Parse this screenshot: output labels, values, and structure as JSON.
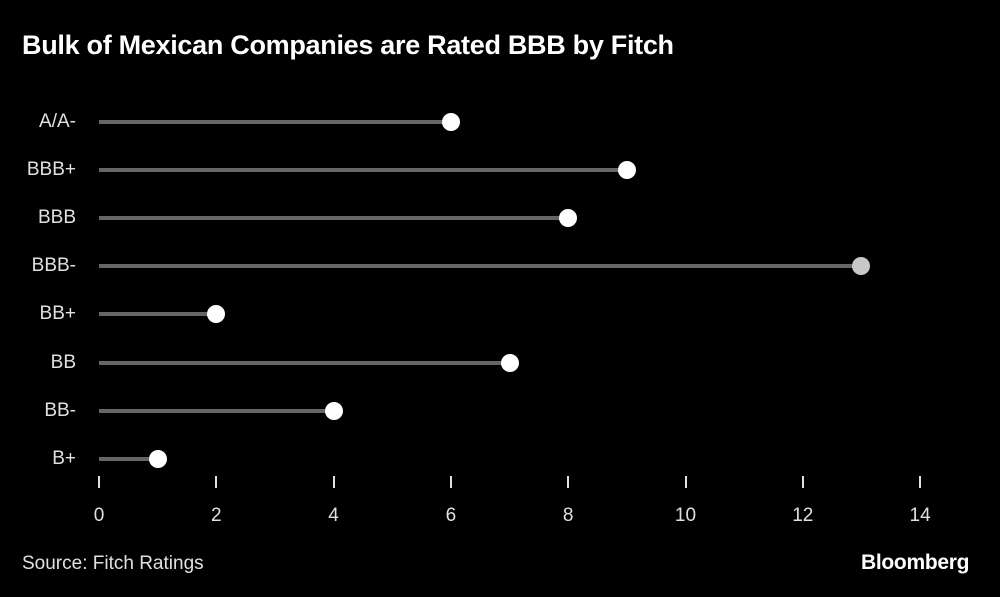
{
  "title": "Bulk of Mexican Companies are Rated BBB by Fitch",
  "source": "Source: Fitch Ratings",
  "brand": "Bloomberg",
  "colors": {
    "background": "#000000",
    "stem": "#666666",
    "dot": "#ffffff",
    "highlight_dot": "#c8c8c8",
    "text": "#e0e0e0"
  },
  "chart_data": {
    "type": "lollipop (horizontal bar)",
    "title": "Bulk of Mexican Companies are Rated BBB by Fitch",
    "xlabel": "",
    "ylabel": "",
    "categories": [
      "A/A-",
      "BBB+",
      "BBB",
      "BBB-",
      "BB+",
      "BB",
      "BB-",
      "B+"
    ],
    "values": [
      6,
      9,
      8,
      13,
      2,
      7,
      4,
      1
    ],
    "highlighted": [
      "BBB-"
    ],
    "xlim": [
      0,
      14
    ],
    "x_ticks": [
      "0",
      "2",
      "4",
      "6",
      "8",
      "10",
      "12",
      "14"
    ],
    "grid": false,
    "legend": null,
    "source": "Source: Fitch Ratings"
  },
  "rows": [
    {
      "label": "A/A-",
      "value": 6,
      "highlight": false
    },
    {
      "label": "BBB+",
      "value": 9,
      "highlight": false
    },
    {
      "label": "BBB",
      "value": 8,
      "highlight": false
    },
    {
      "label": "BBB-",
      "value": 13,
      "highlight": true
    },
    {
      "label": "BB+",
      "value": 2,
      "highlight": false
    },
    {
      "label": "BB",
      "value": 7,
      "highlight": false
    },
    {
      "label": "BB-",
      "value": 4,
      "highlight": false
    },
    {
      "label": "B+",
      "value": 1,
      "highlight": false
    }
  ],
  "ticks": [
    "0",
    "2",
    "4",
    "6",
    "8",
    "10",
    "12",
    "14"
  ]
}
